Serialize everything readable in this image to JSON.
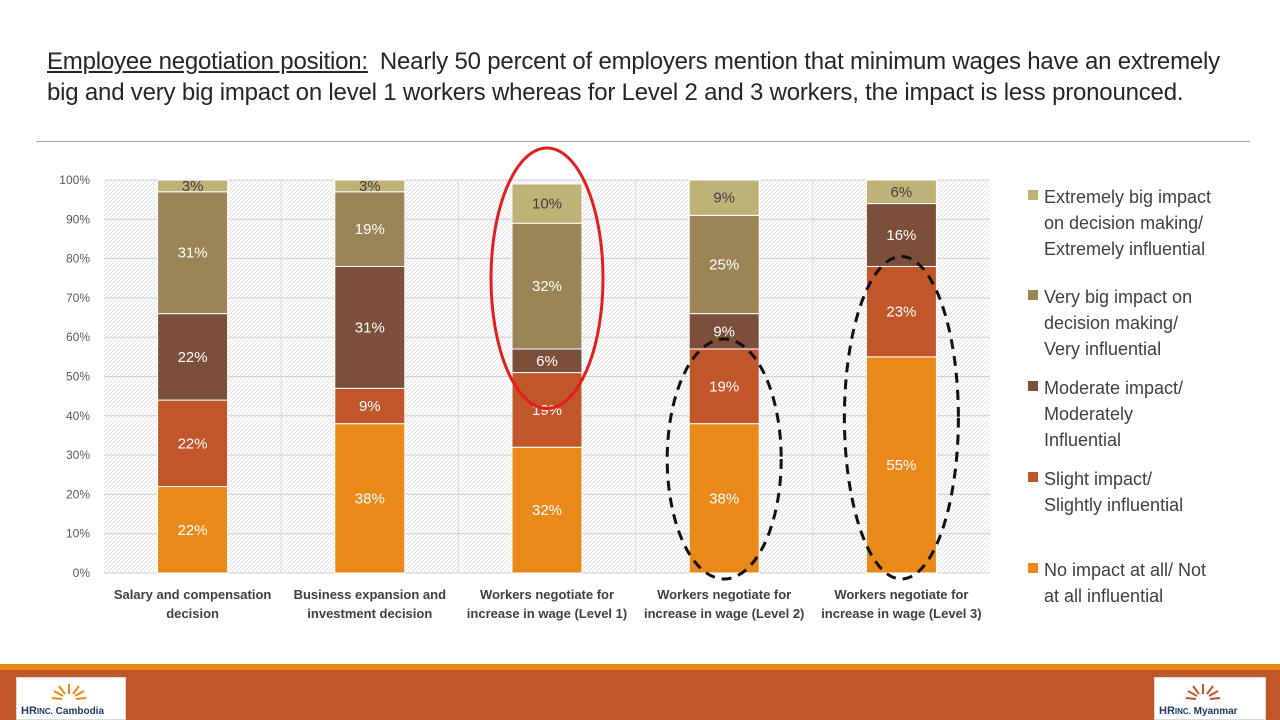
{
  "title": {
    "lead": "Employee negotiation position:",
    "body": "Nearly 50 percent of employers mention that minimum wages have an extremely big and very big impact on level 1 workers whereas for Level 2 and 3 workers, the impact is less pronounced."
  },
  "colors": {
    "no_impact": "#e8891a",
    "slight": "#c0562a",
    "moderate": "#7b4f3a",
    "very_big": "#9b8456",
    "extremely_big": "#bfb277",
    "highlight_red": "#e02020",
    "highlight_black": "#111111",
    "footer": "#c0562a",
    "footer_stripe": "#e8891a"
  },
  "chart_data": {
    "type": "bar",
    "stacked": true,
    "categories": [
      [
        "Salary and compensation",
        "decision"
      ],
      [
        "Business expansion and",
        "investment decision"
      ],
      [
        "Workers negotiate for",
        "increase in wage (Level 1)"
      ],
      [
        "Workers negotiate for",
        "increase in wage (Level 2)"
      ],
      [
        "Workers negotiate for",
        "increase in wage (Level 3)"
      ]
    ],
    "series": [
      {
        "name": "No impact at all/ Not at all influential",
        "color_key": "no_impact",
        "values": [
          22,
          38,
          32,
          38,
          55
        ],
        "labels": [
          "22%",
          "38%",
          "32%",
          "38%",
          "55%"
        ]
      },
      {
        "name": "Slight impact/ Slightly influential",
        "color_key": "slight",
        "values": [
          22,
          9,
          19,
          19,
          23
        ],
        "labels": [
          "22%",
          "9%",
          "19%",
          "19%",
          "23%"
        ]
      },
      {
        "name": "Moderate impact/ Moderately Influential",
        "color_key": "moderate",
        "values": [
          22,
          31,
          6,
          9,
          16
        ],
        "labels": [
          "22%",
          "31%",
          "6%",
          "9%",
          "16%"
        ]
      },
      {
        "name": "Very big impact on decision making/ Very influential",
        "color_key": "very_big",
        "values": [
          31,
          19,
          32,
          25,
          0
        ],
        "labels": [
          "31%",
          "19%",
          "32%",
          "25%",
          ""
        ]
      },
      {
        "name": "Extremely big impact on decision making/ Extremely influential",
        "color_key": "extremely_big",
        "values": [
          3,
          3,
          10,
          9,
          6
        ],
        "labels": [
          "3%",
          "3%",
          "10%",
          "9%",
          "6%"
        ]
      }
    ],
    "yticks": [
      "0%",
      "10%",
      "20%",
      "30%",
      "40%",
      "50%",
      "60%",
      "70%",
      "80%",
      "90%",
      "100%"
    ],
    "ylim": [
      0,
      100
    ],
    "grid": true,
    "legend_position": "right",
    "annotations": [
      {
        "shape": "ellipse",
        "style": "solid",
        "color_key": "highlight_red",
        "category_index": 2,
        "from_value": 50,
        "to_value": 100
      },
      {
        "shape": "ellipse",
        "style": "dashed",
        "color_key": "highlight_black",
        "category_index": 3,
        "from_value": 0,
        "to_value": 58
      },
      {
        "shape": "ellipse",
        "style": "dashed",
        "color_key": "highlight_black",
        "category_index": 4,
        "from_value": 0,
        "to_value": 79
      }
    ]
  },
  "legend": [
    {
      "lines": [
        "Extremely big impact",
        "on decision making/",
        "Extremely influential"
      ],
      "color_key": "extremely_big"
    },
    {
      "lines": [
        "Very big impact on",
        "decision making/",
        "Very influential"
      ],
      "color_key": "very_big"
    },
    {
      "lines": [
        "Moderate impact/",
        "Moderately",
        "Influential"
      ],
      "color_key": "moderate"
    },
    {
      "lines": [
        "Slight impact/",
        "Slightly influential"
      ],
      "color_key": "slight"
    },
    {
      "lines": [
        "No impact at all/ Not",
        "at all influential"
      ],
      "color_key": "no_impact"
    }
  ],
  "logos": {
    "left": {
      "brand": "HR",
      "inc": "INC.",
      "place": "Cambodia"
    },
    "right": {
      "brand": "HR",
      "inc": "INC.",
      "place": "Myanmar"
    }
  }
}
